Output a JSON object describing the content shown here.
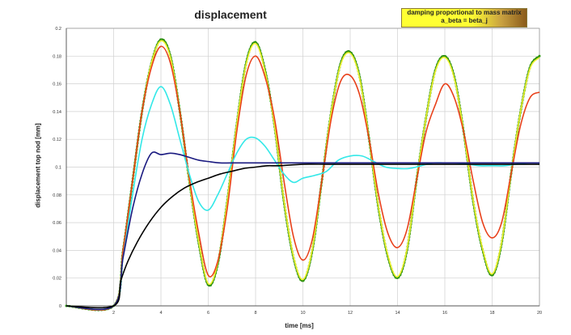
{
  "chart_data": {
    "type": "line",
    "title": "displacement",
    "xlabel": "time [ms]",
    "ylabel": "displacement top nod [mm]",
    "xlim": [
      0,
      20
    ],
    "ylim": [
      0,
      0.2
    ],
    "x_ticks": [
      "2",
      "4",
      "6",
      "8",
      "10",
      "12",
      "14",
      "16",
      "18",
      "20"
    ],
    "y_ticks": [
      "0",
      "0.02",
      "0.04",
      "0.06",
      "0.08",
      "0.1",
      "0.12",
      "0.14",
      "0.16",
      "0.18",
      "0.2"
    ],
    "grid": true,
    "legend": {
      "position": "top-right",
      "lines": [
        "damping proportional to mass matrix",
        "a_beta = beta_j"
      ]
    },
    "series": [
      {
        "color": "#2e7d10",
        "markers": true,
        "x": [
          0,
          2,
          2.4,
          2.8,
          3.2,
          3.6,
          4,
          4.4,
          4.8,
          5.2,
          5.6,
          6,
          6.4,
          6.8,
          7.2,
          7.6,
          8,
          8.4,
          8.8,
          9.2,
          9.6,
          10,
          10.4,
          10.8,
          11.2,
          11.6,
          12,
          12.4,
          12.8,
          13.2,
          13.6,
          14,
          14.4,
          14.8,
          15.2,
          15.6,
          16,
          16.4,
          16.8,
          17.2,
          17.6,
          18,
          18.4,
          18.8,
          19.2,
          19.6,
          20
        ],
        "y": [
          0,
          0,
          0.04,
          0.09,
          0.14,
          0.175,
          0.192,
          0.18,
          0.14,
          0.09,
          0.045,
          0.015,
          0.03,
          0.075,
          0.13,
          0.175,
          0.19,
          0.17,
          0.13,
          0.075,
          0.035,
          0.018,
          0.04,
          0.09,
          0.14,
          0.175,
          0.183,
          0.165,
          0.12,
          0.07,
          0.035,
          0.02,
          0.04,
          0.09,
          0.135,
          0.17,
          0.18,
          0.165,
          0.125,
          0.075,
          0.04,
          0.022,
          0.045,
          0.095,
          0.14,
          0.172,
          0.18
        ]
      },
      {
        "color": "#f2f230",
        "markers": false,
        "x": [
          0,
          2,
          2.4,
          2.8,
          3.2,
          3.6,
          4,
          4.4,
          4.8,
          5.2,
          5.6,
          6,
          6.4,
          6.8,
          7.2,
          7.6,
          8,
          8.4,
          8.8,
          9.2,
          9.6,
          10,
          10.4,
          10.8,
          11.2,
          11.6,
          12,
          12.4,
          12.8,
          13.2,
          13.6,
          14,
          14.4,
          14.8,
          15.2,
          15.6,
          16,
          16.4,
          16.8,
          17.2,
          17.6,
          18,
          18.4,
          18.8,
          19.2,
          19.6,
          20
        ],
        "y": [
          0,
          0,
          0.04,
          0.09,
          0.14,
          0.175,
          0.191,
          0.179,
          0.14,
          0.09,
          0.046,
          0.016,
          0.031,
          0.075,
          0.13,
          0.174,
          0.189,
          0.169,
          0.13,
          0.076,
          0.036,
          0.019,
          0.041,
          0.09,
          0.14,
          0.174,
          0.182,
          0.164,
          0.12,
          0.071,
          0.036,
          0.021,
          0.041,
          0.09,
          0.135,
          0.169,
          0.179,
          0.164,
          0.125,
          0.076,
          0.041,
          0.023,
          0.046,
          0.095,
          0.14,
          0.171,
          0.179
        ]
      },
      {
        "color": "#e8401a",
        "markers": false,
        "x": [
          0,
          2,
          2.4,
          2.8,
          3.2,
          3.6,
          4,
          4.4,
          4.8,
          5.2,
          5.6,
          6,
          6.4,
          6.8,
          7.2,
          7.6,
          8,
          8.4,
          8.8,
          9.2,
          9.6,
          10,
          10.4,
          10.8,
          11.2,
          11.6,
          12,
          12.4,
          12.8,
          13.2,
          13.6,
          14,
          14.4,
          14.8,
          15.2,
          15.6,
          16,
          16.4,
          16.8,
          17.2,
          17.6,
          18,
          18.4,
          18.8,
          19.2,
          19.6,
          20
        ],
        "y": [
          0,
          0,
          0.04,
          0.09,
          0.14,
          0.172,
          0.187,
          0.175,
          0.14,
          0.092,
          0.052,
          0.022,
          0.032,
          0.07,
          0.125,
          0.166,
          0.18,
          0.165,
          0.135,
          0.09,
          0.05,
          0.033,
          0.048,
          0.09,
          0.135,
          0.162,
          0.166,
          0.152,
          0.12,
          0.08,
          0.052,
          0.042,
          0.055,
          0.09,
          0.125,
          0.145,
          0.16,
          0.15,
          0.125,
          0.09,
          0.06,
          0.049,
          0.06,
          0.095,
          0.13,
          0.15,
          0.154
        ]
      },
      {
        "color": "#33e8e8",
        "markers": false,
        "x": [
          0,
          2,
          2.4,
          2.8,
          3.2,
          3.6,
          4,
          4.4,
          4.8,
          5.2,
          5.6,
          6,
          6.4,
          6.8,
          7.2,
          7.6,
          8,
          8.4,
          8.8,
          9.2,
          9.6,
          10,
          10.5,
          11,
          11.5,
          12,
          12.5,
          13,
          13.5,
          14,
          14.5,
          15,
          15.5,
          16,
          16.5,
          17,
          17.5,
          18,
          18.5,
          19,
          19.5,
          20
        ],
        "y": [
          0,
          0,
          0.035,
          0.08,
          0.12,
          0.145,
          0.158,
          0.145,
          0.12,
          0.095,
          0.075,
          0.069,
          0.08,
          0.095,
          0.11,
          0.12,
          0.121,
          0.115,
          0.105,
          0.095,
          0.089,
          0.092,
          0.094,
          0.097,
          0.105,
          0.108,
          0.108,
          0.104,
          0.1,
          0.099,
          0.099,
          0.101,
          0.103,
          0.103,
          0.103,
          0.102,
          0.101,
          0.101,
          0.101,
          0.102,
          0.103,
          0.103
        ]
      },
      {
        "color": "#1a1a80",
        "markers": false,
        "x": [
          0,
          2,
          2.4,
          2.8,
          3.2,
          3.6,
          4,
          4.4,
          4.8,
          5.2,
          5.6,
          6,
          6.5,
          7,
          8,
          9,
          10,
          12,
          14,
          16,
          18,
          20
        ],
        "y": [
          0,
          0,
          0.035,
          0.07,
          0.095,
          0.11,
          0.109,
          0.11,
          0.109,
          0.107,
          0.105,
          0.104,
          0.103,
          0.103,
          0.103,
          0.103,
          0.103,
          0.103,
          0.103,
          0.103,
          0.103,
          0.103
        ]
      },
      {
        "color": "#000000",
        "markers": false,
        "x": [
          0,
          2,
          2.3,
          2.6,
          3,
          3.5,
          4,
          4.5,
          5,
          5.5,
          6,
          6.5,
          7,
          7.5,
          8,
          8.5,
          9,
          10,
          11,
          12,
          14,
          16,
          18,
          20
        ],
        "y": [
          0,
          0,
          0.018,
          0.032,
          0.046,
          0.06,
          0.071,
          0.079,
          0.085,
          0.089,
          0.092,
          0.095,
          0.097,
          0.099,
          0.1,
          0.101,
          0.101,
          0.102,
          0.102,
          0.102,
          0.102,
          0.102,
          0.102,
          0.102
        ]
      }
    ]
  }
}
